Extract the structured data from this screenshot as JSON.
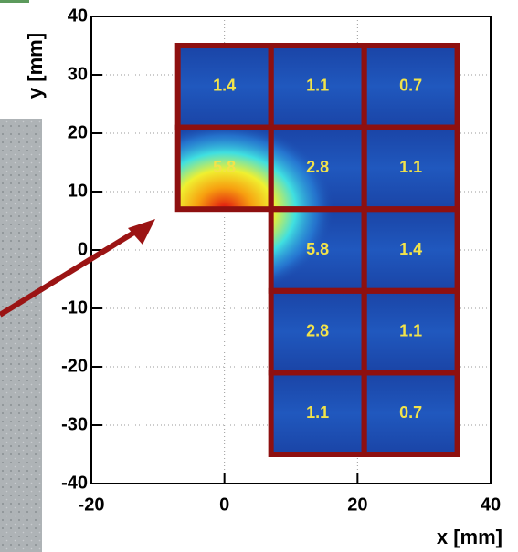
{
  "chart_data": {
    "type": "heatmap",
    "xlabel": "x [mm]",
    "ylabel": "y [mm]",
    "xlim": [
      -20,
      40
    ],
    "xticks": [
      -20,
      0,
      20,
      40
    ],
    "ylim": [
      -40,
      40
    ],
    "yticks": [
      -40,
      -30,
      -20,
      -10,
      0,
      10,
      20,
      30,
      40
    ],
    "grid": true,
    "color": "#1d4fb2",
    "border_color": "#8e1010",
    "label_color": "#f2e34a",
    "cells": [
      {
        "x": [
          -7,
          7
        ],
        "y": [
          21,
          35
        ],
        "value": 1.4
      },
      {
        "x": [
          7,
          21
        ],
        "y": [
          21,
          35
        ],
        "value": 1.1
      },
      {
        "x": [
          21,
          35
        ],
        "y": [
          21,
          35
        ],
        "value": 0.7
      },
      {
        "x": [
          -7,
          7
        ],
        "y": [
          7,
          21
        ],
        "value": 5.8
      },
      {
        "x": [
          7,
          21
        ],
        "y": [
          7,
          21
        ],
        "value": 2.8
      },
      {
        "x": [
          21,
          35
        ],
        "y": [
          7,
          21
        ],
        "value": 1.1
      },
      {
        "x": [
          7,
          21
        ],
        "y": [
          -7,
          7
        ],
        "value": 5.8
      },
      {
        "x": [
          21,
          35
        ],
        "y": [
          -7,
          7
        ],
        "value": 1.4
      },
      {
        "x": [
          7,
          21
        ],
        "y": [
          -21,
          -7
        ],
        "value": 2.8
      },
      {
        "x": [
          21,
          35
        ],
        "y": [
          -21,
          -7
        ],
        "value": 1.1
      },
      {
        "x": [
          7,
          21
        ],
        "y": [
          -35,
          -21
        ],
        "value": 1.1
      },
      {
        "x": [
          21,
          35
        ],
        "y": [
          -35,
          -21
        ],
        "value": 0.7
      }
    ]
  }
}
